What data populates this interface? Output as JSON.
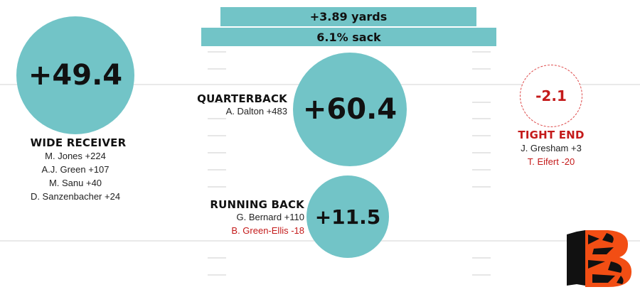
{
  "colors": {
    "accent": "#72c4c7",
    "negative": "#c41a1a",
    "logo_orange": "#f24e14",
    "logo_black": "#111111"
  },
  "top_bars": {
    "yards": "+3.89 yards",
    "sack": "6.1% sack"
  },
  "wide_receiver": {
    "value": "+49.4",
    "title": "WIDE RECEIVER",
    "players": [
      "M. Jones +224",
      "A.J. Green +107",
      "M. Sanu +40",
      "D. Sanzenbacher +24"
    ]
  },
  "quarterback": {
    "value": "+60.4",
    "title": "QUARTERBACK",
    "players": [
      "A. Dalton +483"
    ]
  },
  "running_back": {
    "value": "+11.5",
    "title": "RUNNING BACK",
    "players": [
      "G. Bernard +110",
      "B. Green-Ellis -18"
    ],
    "negative_players": [
      false,
      true
    ]
  },
  "tight_end": {
    "value": "-2.1",
    "title": "TIGHT END",
    "players": [
      "J. Gresham +3",
      "T. Eifert -20"
    ],
    "negative_players": [
      false,
      true
    ]
  },
  "logo": {
    "icon": "bengals-b-logo-icon"
  }
}
